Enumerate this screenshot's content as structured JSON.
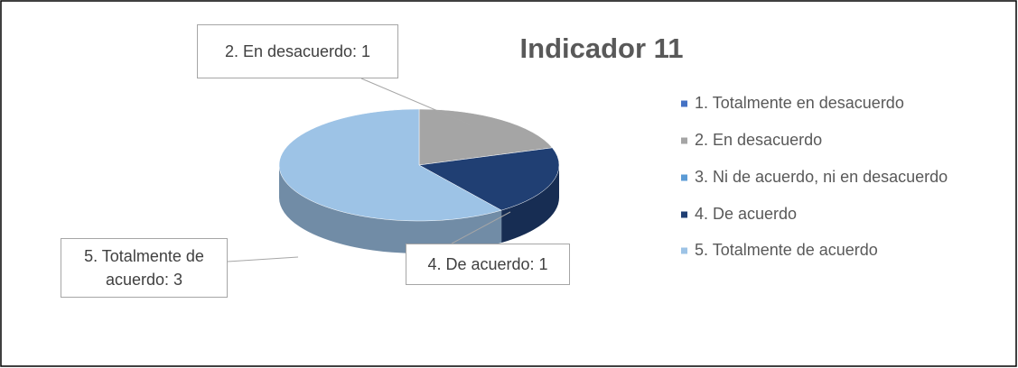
{
  "chart_data": {
    "type": "pie",
    "title": "Indicador 11",
    "categories": [
      "1. Totalmente en desacuerdo",
      "2.  En desacuerdo",
      "3. Ni de acuerdo, ni en desacuerdo",
      "4. De acuerdo",
      "5. Totalmente de acuerdo"
    ],
    "values": [
      0,
      1,
      0,
      1,
      3
    ],
    "value_labels": [
      null,
      "2.  En desacuerdo: 1",
      null,
      "4. De acuerdo: 1",
      "5. Totalmente de acuerdo: 3"
    ],
    "colors": [
      "#4472c4",
      "#a5a5a5",
      "#5b9bd5",
      "#203f73",
      "#9dc3e6"
    ],
    "legend": "right"
  }
}
